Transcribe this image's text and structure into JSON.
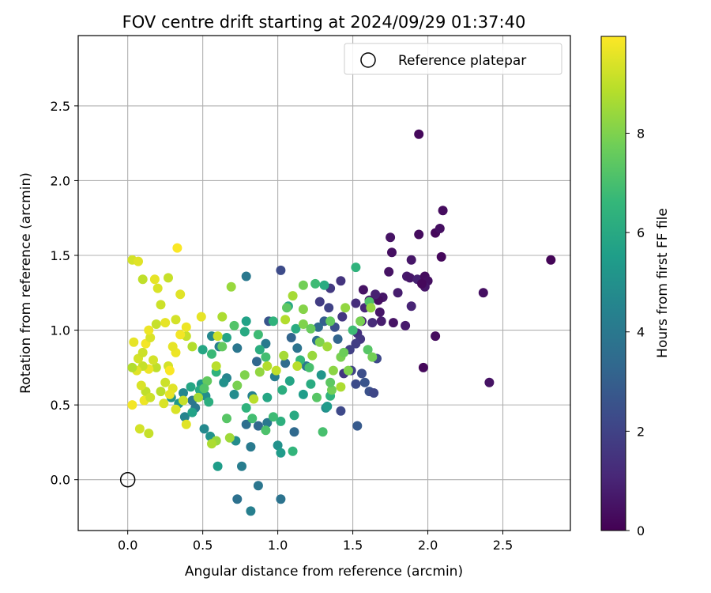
{
  "chart_data": {
    "type": "scatter",
    "title": "FOV centre drift starting at 2024/09/29 01:37:40",
    "xlabel": "Angular distance from reference (arcmin)",
    "ylabel": "Rotation from reference (arcmin)",
    "colorbar_label": "Hours from first FF file",
    "xlim": [
      -0.33,
      2.95
    ],
    "ylim": [
      -0.34,
      2.97
    ],
    "x_ticks": [
      "0.0",
      "0.5",
      "1.0",
      "1.5",
      "2.0",
      "2.5"
    ],
    "y_ticks": [
      "0.0",
      "0.5",
      "1.0",
      "1.5",
      "2.0",
      "2.5"
    ],
    "colorbar_ticks": [
      "0",
      "2",
      "4",
      "6",
      "8"
    ],
    "colorbar_range": [
      0,
      9.95
    ],
    "colormap": [
      "#440154",
      "#482878",
      "#3e4989",
      "#31688e",
      "#26828e",
      "#1f9e89",
      "#35b779",
      "#6ece58",
      "#b5de2b",
      "#fde725"
    ],
    "grid": true,
    "legend_position": "upper-right",
    "legend_label": "Reference platepar",
    "reference_point": [
      0.0,
      0.0
    ],
    "points": [
      [
        1.94,
        2.31,
        0.2
      ],
      [
        2.1,
        1.8,
        0.3
      ],
      [
        2.05,
        1.65,
        0.2
      ],
      [
        2.08,
        1.68,
        0.4
      ],
      [
        1.94,
        1.64,
        0.3
      ],
      [
        1.75,
        1.62,
        0.5
      ],
      [
        2.09,
        1.49,
        0.2
      ],
      [
        2.82,
        1.47,
        0.1
      ],
      [
        1.89,
        1.47,
        0.6
      ],
      [
        1.76,
        1.52,
        0.4
      ],
      [
        1.74,
        1.39,
        0.5
      ],
      [
        1.86,
        1.36,
        0.7
      ],
      [
        1.88,
        1.35,
        0.6
      ],
      [
        1.93,
        1.34,
        0.9
      ],
      [
        1.98,
        1.36,
        0.3
      ],
      [
        2.0,
        1.33,
        0.4
      ],
      [
        1.98,
        1.29,
        0.6
      ],
      [
        1.96,
        1.31,
        0.2
      ],
      [
        2.37,
        1.25,
        0.4
      ],
      [
        1.8,
        1.25,
        0.8
      ],
      [
        1.7,
        1.22,
        0.6
      ],
      [
        1.67,
        1.2,
        0.4
      ],
      [
        1.65,
        1.24,
        0.9
      ],
      [
        1.61,
        1.2,
        0.7
      ],
      [
        1.57,
        1.27,
        0.5
      ],
      [
        1.89,
        1.16,
        1.0
      ],
      [
        1.68,
        1.12,
        0.6
      ],
      [
        1.58,
        1.15,
        1.1
      ],
      [
        1.52,
        1.18,
        1.3
      ],
      [
        1.85,
        1.03,
        0.7
      ],
      [
        1.77,
        1.05,
        0.5
      ],
      [
        1.69,
        1.06,
        0.8
      ],
      [
        1.63,
        1.05,
        1.2
      ],
      [
        1.56,
        1.06,
        1.0
      ],
      [
        1.53,
        0.98,
        1.4
      ],
      [
        2.05,
        0.96,
        0.3
      ],
      [
        1.55,
        0.94,
        1.6
      ],
      [
        1.52,
        0.91,
        1.8
      ],
      [
        1.48,
        0.87,
        1.9
      ],
      [
        1.66,
        0.81,
        2.2
      ],
      [
        1.97,
        0.75,
        0.2
      ],
      [
        1.56,
        0.71,
        2.4
      ],
      [
        1.49,
        0.73,
        2.0
      ],
      [
        1.44,
        0.71,
        1.6
      ],
      [
        1.52,
        0.64,
        2.3
      ],
      [
        1.58,
        0.65,
        2.6
      ],
      [
        2.41,
        0.65,
        0.5
      ],
      [
        1.61,
        0.59,
        2.5
      ],
      [
        1.64,
        0.58,
        2.1
      ],
      [
        1.42,
        0.46,
        2.2
      ],
      [
        1.53,
        0.36,
        2.8
      ],
      [
        1.42,
        1.33,
        1.5
      ],
      [
        1.35,
        1.28,
        1.7
      ],
      [
        1.28,
        1.19,
        1.8
      ],
      [
        1.34,
        1.15,
        2.0
      ],
      [
        1.43,
        1.09,
        1.6
      ],
      [
        1.38,
        1.02,
        2.5
      ],
      [
        1.31,
        1.06,
        3.0
      ],
      [
        1.27,
        1.02,
        3.4
      ],
      [
        1.26,
        0.93,
        3.6
      ],
      [
        1.4,
        0.94,
        3.2
      ],
      [
        1.02,
        1.4,
        2.3
      ],
      [
        0.94,
        1.06,
        2.6
      ],
      [
        1.09,
        0.95,
        3.2
      ],
      [
        1.13,
        0.88,
        3.8
      ],
      [
        1.19,
        0.76,
        4.0
      ],
      [
        1.05,
        0.78,
        3.5
      ],
      [
        0.98,
        0.69,
        4.2
      ],
      [
        0.92,
        0.91,
        4.1
      ],
      [
        0.86,
        0.79,
        3.3
      ],
      [
        0.83,
        0.56,
        4.4
      ],
      [
        0.79,
        1.36,
        4.0
      ],
      [
        0.73,
        0.88,
        3.9
      ],
      [
        0.66,
        0.68,
        4.5
      ],
      [
        0.71,
        0.57,
        4.8
      ],
      [
        0.64,
        0.65,
        5.0
      ],
      [
        0.56,
        0.96,
        4.6
      ],
      [
        0.61,
        0.89,
        4.3
      ],
      [
        0.49,
        0.64,
        5.2
      ],
      [
        0.51,
        0.34,
        4.7
      ],
      [
        0.55,
        0.29,
        5.1
      ],
      [
        0.52,
        0.56,
        4.9
      ],
      [
        0.45,
        0.48,
        4.0
      ],
      [
        0.38,
        0.42,
        4.5
      ],
      [
        0.43,
        0.53,
        3.9
      ],
      [
        0.34,
        0.51,
        5.3
      ],
      [
        0.37,
        0.58,
        4.6
      ],
      [
        0.29,
        0.55,
        5.1
      ],
      [
        0.79,
        0.37,
        3.6
      ],
      [
        0.87,
        0.36,
        3.3
      ],
      [
        0.93,
        0.38,
        4.0
      ],
      [
        0.72,
        0.26,
        4.8
      ],
      [
        0.82,
        0.22,
        4.1
      ],
      [
        0.76,
        0.09,
        4.2
      ],
      [
        0.6,
        0.09,
        5.5
      ],
      [
        0.87,
        -0.04,
        3.9
      ],
      [
        0.73,
        -0.13,
        3.7
      ],
      [
        0.82,
        -0.21,
        4.3
      ],
      [
        1.02,
        -0.13,
        3.8
      ],
      [
        1.11,
        0.32,
        3.4
      ],
      [
        1.0,
        0.23,
        5.0
      ],
      [
        1.02,
        0.18,
        5.4
      ],
      [
        1.1,
        0.19,
        6.5
      ],
      [
        1.11,
        0.43,
        6.0
      ],
      [
        1.02,
        0.39,
        6.3
      ],
      [
        0.97,
        0.42,
        6.8
      ],
      [
        0.92,
        0.33,
        7.1
      ],
      [
        0.83,
        0.41,
        6.9
      ],
      [
        0.66,
        0.41,
        7.3
      ],
      [
        0.59,
        0.26,
        8.4
      ],
      [
        0.56,
        0.24,
        8.7
      ],
      [
        0.68,
        0.28,
        8.5
      ],
      [
        0.79,
        0.48,
        6.4
      ],
      [
        0.93,
        0.55,
        5.9
      ],
      [
        1.03,
        0.6,
        6.2
      ],
      [
        1.08,
        0.66,
        5.8
      ],
      [
        1.17,
        0.57,
        5.5
      ],
      [
        1.22,
        0.64,
        6.1
      ],
      [
        1.29,
        0.7,
        5.2
      ],
      [
        1.32,
        0.48,
        4.9
      ],
      [
        1.33,
        0.49,
        5.4
      ],
      [
        1.35,
        0.56,
        6.4
      ],
      [
        1.3,
        0.32,
        7.0
      ],
      [
        1.36,
        0.6,
        7.8
      ],
      [
        1.26,
        0.55,
        7.3
      ],
      [
        1.21,
        0.75,
        7.0
      ],
      [
        1.15,
        0.8,
        6.6
      ],
      [
        1.12,
        1.01,
        6.1
      ],
      [
        1.07,
        1.16,
        5.9
      ],
      [
        0.97,
        1.06,
        6.4
      ],
      [
        0.88,
        0.87,
        6.2
      ],
      [
        0.92,
        0.82,
        6.9
      ],
      [
        0.87,
        0.97,
        6.8
      ],
      [
        0.78,
        0.99,
        6.0
      ],
      [
        0.79,
        1.06,
        5.7
      ],
      [
        0.71,
        1.03,
        7.2
      ],
      [
        0.66,
        0.95,
        5.8
      ],
      [
        0.63,
        0.89,
        7.5
      ],
      [
        0.59,
        0.72,
        6.4
      ],
      [
        0.56,
        0.84,
        6.7
      ],
      [
        0.5,
        0.87,
        5.9
      ],
      [
        0.48,
        0.6,
        6.0
      ],
      [
        0.54,
        0.52,
        6.2
      ],
      [
        0.43,
        0.45,
        5.7
      ],
      [
        0.42,
        0.62,
        5.9
      ],
      [
        1.52,
        1.42,
        6.4
      ],
      [
        1.61,
        1.19,
        7.2
      ],
      [
        1.55,
        1.06,
        7.9
      ],
      [
        1.45,
        1.15,
        8.3
      ],
      [
        1.35,
        1.06,
        7.5
      ],
      [
        1.31,
        1.3,
        6.1
      ],
      [
        1.25,
        1.31,
        6.8
      ],
      [
        1.17,
        1.3,
        7.8
      ],
      [
        1.17,
        1.14,
        8.1
      ],
      [
        1.1,
        1.23,
        8.6
      ],
      [
        1.05,
        1.07,
        8.8
      ],
      [
        1.06,
        1.15,
        7.4
      ],
      [
        1.17,
        1.04,
        8.0
      ],
      [
        1.22,
        1.01,
        7.6
      ],
      [
        1.28,
        0.92,
        8.0
      ],
      [
        1.33,
        0.89,
        8.5
      ],
      [
        1.42,
        0.82,
        7.9
      ],
      [
        1.37,
        0.73,
        8.2
      ],
      [
        1.35,
        0.65,
        7.4
      ],
      [
        1.42,
        0.62,
        8.7
      ],
      [
        1.47,
        0.73,
        8.0
      ],
      [
        1.44,
        0.85,
        7.7
      ],
      [
        1.5,
        1.0,
        6.8
      ],
      [
        1.6,
        0.87,
        7.3
      ],
      [
        1.62,
        1.15,
        8.3
      ],
      [
        1.63,
        0.82,
        7.8
      ],
      [
        1.23,
        0.83,
        8.4
      ],
      [
        1.13,
        0.76,
        8.9
      ],
      [
        1.04,
        0.83,
        8.6
      ],
      [
        0.99,
        0.73,
        9.0
      ],
      [
        0.93,
        0.76,
        8.8
      ],
      [
        0.88,
        0.72,
        8.3
      ],
      [
        0.84,
        0.54,
        8.9
      ],
      [
        0.78,
        0.7,
        8.0
      ],
      [
        0.73,
        0.63,
        7.9
      ],
      [
        0.69,
        1.29,
        8.4
      ],
      [
        0.63,
        1.09,
        8.7
      ],
      [
        0.6,
        0.96,
        9.2
      ],
      [
        0.59,
        0.76,
        8.9
      ],
      [
        0.53,
        0.66,
        7.5
      ],
      [
        0.51,
        0.61,
        7.2
      ],
      [
        0.47,
        0.55,
        8.6
      ],
      [
        0.37,
        0.53,
        9.1
      ],
      [
        0.39,
        0.37,
        9.5
      ],
      [
        0.49,
        1.09,
        9.6
      ],
      [
        0.43,
        0.89,
        8.8
      ],
      [
        0.39,
        0.96,
        9.1
      ],
      [
        0.35,
        0.97,
        9.8
      ],
      [
        0.32,
        0.85,
        9.7
      ],
      [
        0.3,
        0.89,
        9.6
      ],
      [
        0.27,
        0.76,
        9.3
      ],
      [
        0.25,
        0.65,
        9.2
      ],
      [
        0.22,
        0.59,
        8.9
      ],
      [
        0.24,
        0.51,
        9.4
      ],
      [
        0.3,
        0.61,
        9.5
      ],
      [
        0.28,
        0.73,
        9.9
      ],
      [
        0.19,
        0.75,
        9.0
      ],
      [
        0.17,
        0.8,
        9.3
      ],
      [
        0.14,
        0.74,
        9.7
      ],
      [
        0.1,
        0.76,
        9.1
      ],
      [
        0.06,
        0.73,
        9.5
      ],
      [
        0.03,
        0.75,
        8.8
      ],
      [
        0.07,
        0.81,
        9.3
      ],
      [
        0.04,
        0.92,
        9.6
      ],
      [
        0.1,
        0.85,
        9.2
      ],
      [
        0.12,
        0.91,
        9.8
      ],
      [
        0.15,
        0.95,
        9.4
      ],
      [
        0.14,
        1.0,
        9.7
      ],
      [
        0.19,
        1.04,
        9.1
      ],
      [
        0.25,
        1.05,
        9.6
      ],
      [
        0.32,
        1.07,
        9.3
      ],
      [
        0.39,
        1.02,
        9.7
      ],
      [
        0.35,
        1.24,
        9.5
      ],
      [
        0.22,
        1.17,
        9.2
      ],
      [
        0.2,
        1.28,
        9.4
      ],
      [
        0.1,
        1.34,
        9.0
      ],
      [
        0.18,
        1.34,
        9.6
      ],
      [
        0.27,
        1.35,
        9.1
      ],
      [
        0.33,
        1.55,
        9.9
      ],
      [
        0.03,
        1.47,
        9.3
      ],
      [
        0.07,
        1.46,
        9.5
      ],
      [
        0.12,
        0.59,
        9.0
      ],
      [
        0.09,
        0.63,
        9.4
      ],
      [
        0.11,
        0.53,
        9.7
      ],
      [
        0.15,
        0.55,
        9.2
      ],
      [
        0.14,
        0.31,
        9.1
      ],
      [
        0.08,
        0.34,
        9.3
      ],
      [
        0.03,
        0.5,
        9.8
      ],
      [
        0.28,
        0.57,
        9.6
      ],
      [
        0.32,
        0.47,
        9.4
      ]
    ]
  }
}
